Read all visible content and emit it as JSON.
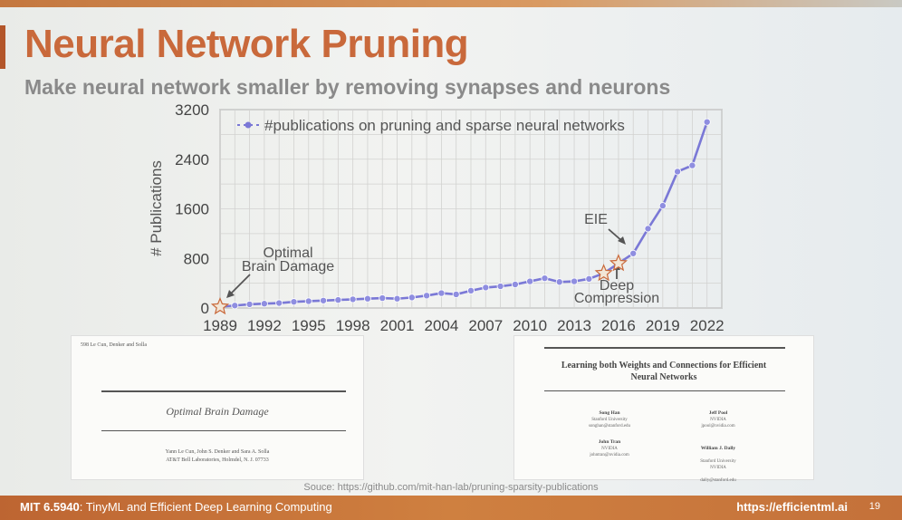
{
  "slide": {
    "title": "Neural Network Pruning",
    "subtitle": "Make neural network smaller by removing synapses and neurons",
    "source": "Souce: https://github.com/mit-han-lab/pruning-sparsity-publications",
    "footer": {
      "course_code": "MIT 6.5940",
      "course_name": ": TinyML and Efficient Deep Learning Computing",
      "url": "https://efficientml.ai",
      "page": "19"
    }
  },
  "papers": {
    "left": {
      "header": "598    Le Cun, Denker and Solla",
      "title": "Optimal Brain Damage",
      "authors_line1": "Yann Le Cun, John S. Denker and Sara A. Solla",
      "authors_line2": "AT&T Bell Laboratories, Holmdel, N. J. 07733"
    },
    "right": {
      "title_line1": "Learning both Weights and Connections for Efficient",
      "title_line2": "Neural Networks",
      "authors": [
        {
          "name": "Song Han",
          "affil": "Stanford University",
          "email": "songhan@stanford.edu"
        },
        {
          "name": "Jeff Pool",
          "affil": "NVIDIA",
          "email": "jpool@nvidia.com"
        },
        {
          "name": "John Tran",
          "affil": "NVIDIA",
          "email": "johntran@nvidia.com"
        },
        {
          "name": "William J. Dally",
          "affil": "Stanford University\nNVIDIA",
          "email": "dally@stanford.edu"
        }
      ]
    }
  },
  "chart_data": {
    "type": "line",
    "title": "",
    "xlabel": "",
    "ylabel": "# Publications",
    "xlim": [
      1989,
      2023
    ],
    "ylim": [
      0,
      3200
    ],
    "x_ticks": [
      1989,
      1992,
      1995,
      1998,
      2001,
      2004,
      2007,
      2010,
      2013,
      2016,
      2019,
      2022
    ],
    "y_ticks": [
      0,
      800,
      1600,
      2400,
      3200
    ],
    "grid": true,
    "legend_position": "top-left",
    "series": [
      {
        "name": "#publications on pruning and sparse neural networks",
        "color": "#7a78d6",
        "x": [
          1989,
          1990,
          1991,
          1992,
          1993,
          1994,
          1995,
          1996,
          1997,
          1998,
          1999,
          2000,
          2001,
          2002,
          2003,
          2004,
          2005,
          2006,
          2007,
          2008,
          2009,
          2010,
          2011,
          2012,
          2013,
          2014,
          2015,
          2016,
          2017,
          2018,
          2019,
          2020,
          2021,
          2022
        ],
        "values": [
          20,
          40,
          60,
          70,
          80,
          100,
          110,
          120,
          130,
          140,
          150,
          160,
          150,
          170,
          200,
          240,
          220,
          280,
          330,
          350,
          380,
          430,
          480,
          420,
          430,
          470,
          560,
          720,
          880,
          1280,
          1650,
          2200,
          2300,
          3000
        ]
      }
    ],
    "annotations": [
      {
        "label_line1": "Optimal",
        "label_line2": "Brain Damage",
        "year": 1989
      },
      {
        "label": "EIE",
        "year": 2016
      },
      {
        "label_line1": "Deep",
        "label_line2": "Compression",
        "year": 2015
      }
    ],
    "marker_color": "#c9693b"
  }
}
